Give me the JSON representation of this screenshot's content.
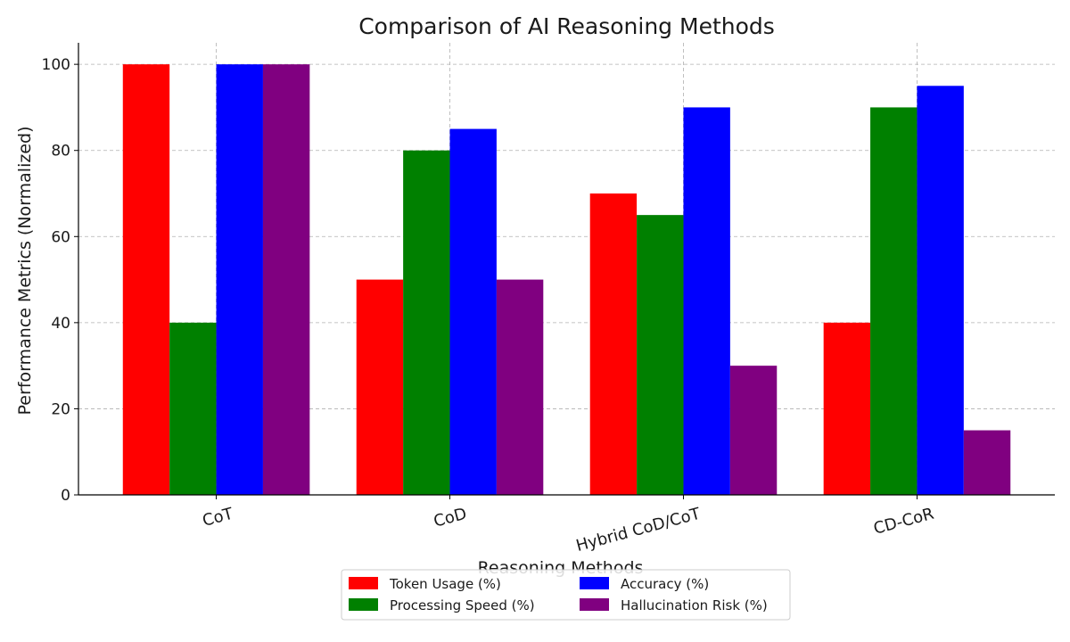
{
  "chart_data": {
    "type": "bar",
    "title": "Comparison of AI Reasoning Methods",
    "xlabel": "Reasoning Methods",
    "ylabel": "Performance Metrics (Normalized)",
    "categories": [
      "CoT",
      "CoD",
      "Hybrid CoD/CoT",
      "CD-CoR"
    ],
    "series": [
      {
        "name": "Token Usage (%)",
        "color": "#ff0000",
        "values": [
          100,
          50,
          70,
          40
        ]
      },
      {
        "name": "Processing Speed (%)",
        "color": "#008000",
        "values": [
          40,
          80,
          65,
          90
        ]
      },
      {
        "name": "Accuracy (%)",
        "color": "#0000ff",
        "values": [
          100,
          85,
          90,
          95
        ]
      },
      {
        "name": "Hallucination Risk (%)",
        "color": "#800080",
        "values": [
          100,
          50,
          30,
          15
        ]
      }
    ],
    "ylim": [
      0,
      105
    ],
    "yticks": [
      0,
      20,
      40,
      60,
      80,
      100
    ],
    "grid": true,
    "legend_position": "bottom-center"
  }
}
